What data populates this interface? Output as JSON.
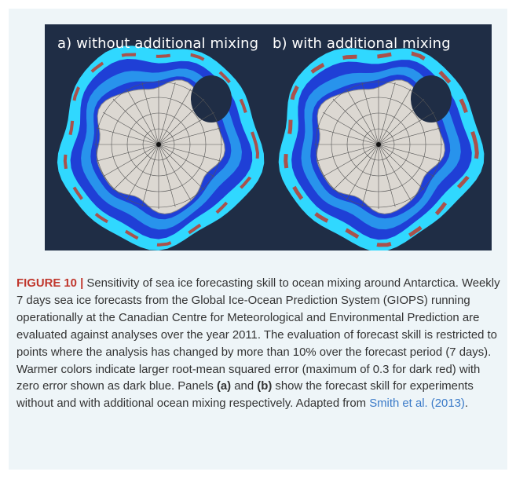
{
  "figure": {
    "panels": [
      {
        "title": "a) without additional mixing",
        "icon": "antarctica-sea-ice-error-map"
      },
      {
        "title": "b) with additional mixing",
        "icon": "antarctica-sea-ice-error-map"
      }
    ],
    "colors": {
      "ocean_background": "#1f2d45",
      "low_error": "#1f3fd6",
      "mid_error": "#30d8ff",
      "high_error": "#c0392b",
      "land": "#dcd8d2",
      "caption_label": "#c0362c",
      "citation_link": "#3a7ac8"
    }
  },
  "caption": {
    "label": "FIGURE 10 |",
    "part1": " Sensitivity of sea ice forecasting skill to ocean mixing around Antarctica. Weekly 7 days sea ice forecasts from the Global Ice-Ocean Prediction System (GIOPS) running operationally at the Canadian Centre for Meteorological and Environmental Prediction are evaluated against analyses over the year 2011. The evaluation of forecast skill is restricted to points where the analysis has changed by more than 10% over the forecast period (7 days). Warmer colors indicate larger root-mean squared error (maximum of 0.3 for dark red) with zero error shown as dark blue. Panels ",
    "panel_a": "(a)",
    "part2": " and ",
    "panel_b": "(b)",
    "part3": " show the forecast skill for experiments without and with additional ocean mixing respectively. Adapted from ",
    "citation": "Smith et al. (2013)",
    "part4": "."
  }
}
